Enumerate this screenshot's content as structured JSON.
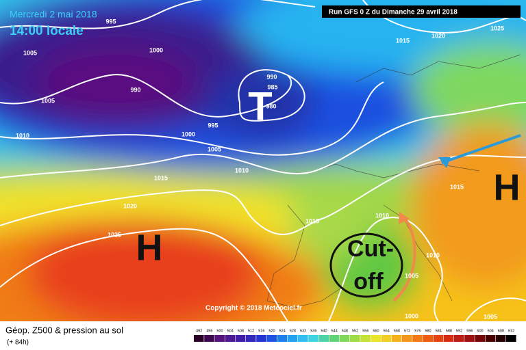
{
  "header": {
    "date": "Mercredi 2 mai 2018",
    "time": "14:00 locale",
    "run": "Run GFS 0 Z du Dimanche 29 avril 2018"
  },
  "map": {
    "isobar_labels": [
      995,
      1005,
      1000,
      990,
      1005,
      990,
      985,
      980,
      995,
      1010,
      1000,
      1005,
      1010,
      1015,
      1020,
      1025,
      1015,
      1015,
      1020,
      1025,
      1015,
      1010,
      1010,
      1005,
      1000,
      1005
    ],
    "low_label": "T",
    "high_labels": [
      "H",
      "H"
    ],
    "annotation": [
      "Cut-",
      "off"
    ],
    "copyright": "Copyright © 2018 Meteociel.fr"
  },
  "footer": {
    "title": "Géop. Z500 & pression au sol",
    "lead": "(+ 84h)",
    "scale": [
      492,
      496,
      500,
      504,
      508,
      512,
      516,
      520,
      524,
      528,
      532,
      536,
      540,
      544,
      548,
      552,
      556,
      560,
      564,
      568,
      572,
      576,
      580,
      584,
      588,
      592,
      596,
      600,
      604,
      608,
      612
    ]
  }
}
